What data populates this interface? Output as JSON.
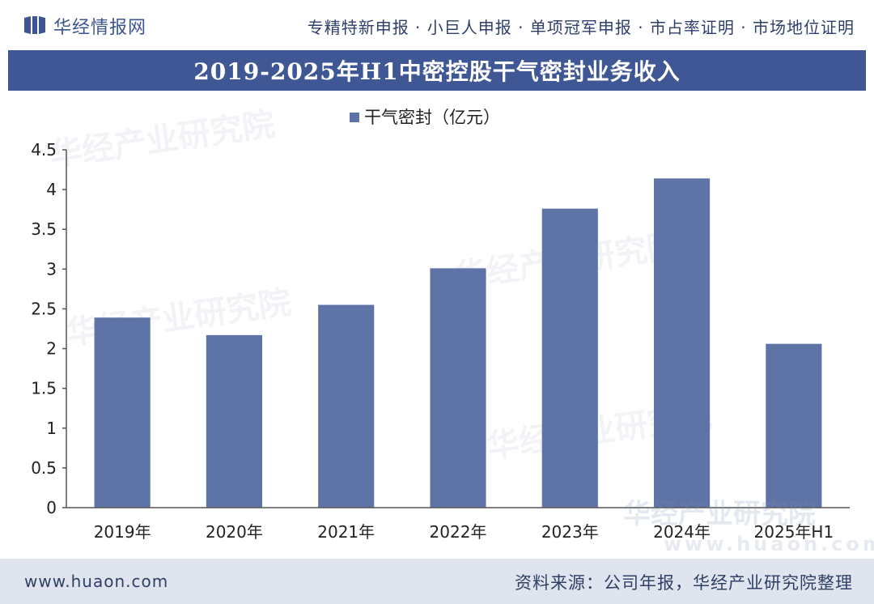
{
  "header": {
    "brand": "华经情报网",
    "taglines": "专精特新申报 · 小巨人申报 · 单项冠军申报 · 市占率证明 · 市场地位证明"
  },
  "footer": {
    "url": "www.huaon.com",
    "source": "资料来源：公司年报，华经产业研究院整理"
  },
  "watermark": {
    "brand_cn": "华经产业研究院",
    "brand_url": "www.huaon.com"
  },
  "colors": {
    "bar": "#5f74a6",
    "title_bg": "#3f5795",
    "axis": "#333333"
  },
  "chart_data": {
    "type": "bar",
    "title": "2019-2025年H1中密控股干气密封业务收入",
    "categories": [
      "2019年",
      "2020年",
      "2021年",
      "2022年",
      "2023年",
      "2024年",
      "2025年H1"
    ],
    "series": [
      {
        "name": "干气密封（亿元）",
        "values": [
          2.39,
          2.17,
          2.55,
          3.01,
          3.76,
          4.14,
          2.06
        ]
      }
    ],
    "ylim": [
      0,
      4.5
    ],
    "yticks": [
      "0",
      "0.5",
      "1",
      "1.5",
      "2",
      "2.5",
      "3",
      "3.5",
      "4",
      "4.5"
    ],
    "ytick_values": [
      0,
      0.5,
      1,
      1.5,
      2,
      2.5,
      3,
      3.5,
      4,
      4.5
    ],
    "legend": "top-center",
    "grid": false
  }
}
